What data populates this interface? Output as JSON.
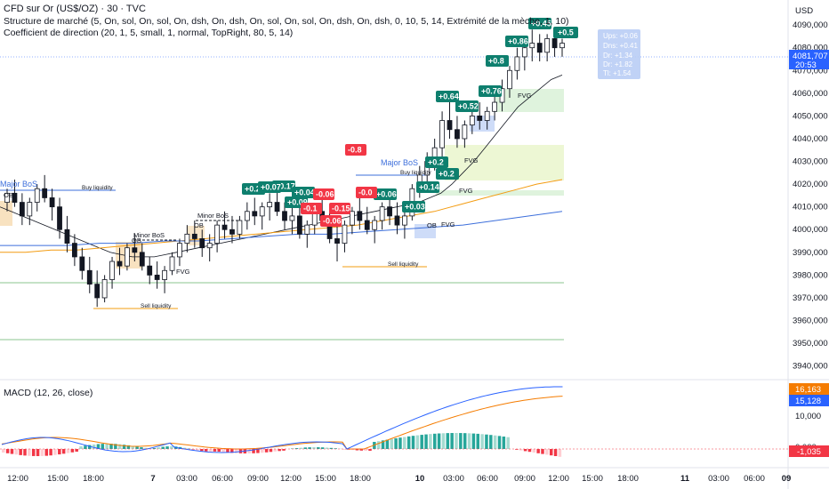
{
  "header": {
    "title": "CFD sur Or (US$/OZ) · 30 · TVC",
    "indicator1": "Structure de marché (5, On, sol, On, sol, On, dsh, On, dsh, On, sol, On, sol, On, dsh, On, dsh, 0, 10, 5, 14, Extrémité de la mèche, 1, 10)",
    "indicator2": "Coefficient de direction (20, 1, 5, small, 1, normal, TopRight, 80, 5, 14)",
    "currency": "USD"
  },
  "price_axis": {
    "ticks": [
      "4090,000",
      "4080,000",
      "4070,000",
      "4060,000",
      "4050,000",
      "4040,000",
      "4030,000",
      "4020,000",
      "4010,000",
      "4000,000",
      "3990,000",
      "3980,000",
      "3970,000",
      "3960,000",
      "3950,000",
      "3940,000"
    ],
    "current_price": "4081,707",
    "countdown": "20:53"
  },
  "macd": {
    "legend": "MACD (12, 26, close)",
    "ticks": [
      "10,000",
      "0,000"
    ],
    "badge_orange": "16,163",
    "badge_blue": "15,128",
    "badge_red": "-1,035"
  },
  "time_axis": {
    "labels": [
      "12:00",
      "15:00",
      "18:00",
      "7",
      "03:00",
      "06:00",
      "09:00",
      "12:00",
      "15:00",
      "18:00",
      "10",
      "03:00",
      "06:00",
      "09:00",
      "12:00",
      "15:00",
      "18:00",
      "11",
      "03:00",
      "06:00",
      "09"
    ]
  },
  "annotations": {
    "major_bos_left": "Major BoS",
    "major_bos_mid": "Major BoS",
    "minor_bos_1": "Minor BoS",
    "minor_bos_2": "Minor BoS",
    "ob": "OB",
    "fvg": "FVG",
    "buy_liquidity": "Buy liquidity",
    "sell_liquidity": "Sell liquidity"
  },
  "info_box": {
    "lines": [
      "Ups: +0.06",
      "Dns: +0.41",
      "Dr: +1.34",
      "Dr: +1.82",
      "Tl: +1.54"
    ]
  },
  "tags": {
    "green": [
      "+0.29",
      "+0.17",
      "+0.04",
      "+0.09",
      "+0.07",
      "+0.06",
      "+0.03",
      "+0.14",
      "+0.2",
      "+0.2",
      "+0.64",
      "+0.52",
      "+0.76",
      "+0.8",
      "+0.86",
      "+0.45",
      "+0.41",
      "+0.5"
    ],
    "red": [
      "-0.06",
      "-0.15",
      "-0.0",
      "-0.1",
      "-0.8",
      "-0.06"
    ]
  },
  "chart_data": {
    "type": "candlestick",
    "title": "CFD sur Or (US$/OZ) · 30 · TVC",
    "ylim": [
      3934,
      4101
    ],
    "candles": [
      [
        4012,
        4018,
        4008,
        4016
      ],
      [
        4016,
        4022,
        4010,
        4012
      ],
      [
        4012,
        4016,
        4002,
        4006
      ],
      [
        4006,
        4014,
        4002,
        4012
      ],
      [
        4012,
        4020,
        4008,
        4018
      ],
      [
        4018,
        4024,
        4012,
        4014
      ],
      [
        4014,
        4018,
        4004,
        4010
      ],
      [
        4010,
        4014,
        3996,
        4000
      ],
      [
        4000,
        4006,
        3990,
        3994
      ],
      [
        3994,
        3998,
        3984,
        3988
      ],
      [
        3988,
        3992,
        3978,
        3982
      ],
      [
        3982,
        3988,
        3972,
        3976
      ],
      [
        3976,
        3982,
        3966,
        3970
      ],
      [
        3970,
        3980,
        3968,
        3978
      ],
      [
        3978,
        3988,
        3974,
        3986
      ],
      [
        3986,
        3992,
        3980,
        3984
      ],
      [
        3984,
        3994,
        3982,
        3992
      ],
      [
        3992,
        3998,
        3986,
        3990
      ],
      [
        3990,
        3994,
        3982,
        3984
      ],
      [
        3984,
        3988,
        3976,
        3980
      ],
      [
        3980,
        3986,
        3974,
        3978
      ],
      [
        3978,
        3984,
        3972,
        3982
      ],
      [
        3982,
        3990,
        3980,
        3988
      ],
      [
        3988,
        3996,
        3984,
        3994
      ],
      [
        3994,
        4002,
        3990,
        3998
      ],
      [
        3998,
        4004,
        3992,
        3996
      ],
      [
        3996,
        4000,
        3988,
        3992
      ],
      [
        3992,
        3998,
        3986,
        3994
      ],
      [
        3994,
        4004,
        3990,
        4002
      ],
      [
        4002,
        4008,
        3996,
        4000
      ],
      [
        4000,
        4006,
        3994,
        3998
      ],
      [
        3998,
        4006,
        3996,
        4004
      ],
      [
        4004,
        4012,
        4000,
        4008
      ],
      [
        4008,
        4014,
        4002,
        4006
      ],
      [
        4006,
        4012,
        4000,
        4010
      ],
      [
        4010,
        4016,
        4004,
        4012
      ],
      [
        4012,
        4018,
        4006,
        4008
      ],
      [
        4008,
        4012,
        4000,
        4004
      ],
      [
        4004,
        4010,
        3998,
        4006
      ],
      [
        4006,
        4010,
        3996,
        3998
      ],
      [
        3998,
        4004,
        3992,
        4002
      ],
      [
        4002,
        4010,
        3998,
        4008
      ],
      [
        4008,
        4014,
        4002,
        4004
      ],
      [
        4004,
        4008,
        3994,
        3996
      ],
      [
        3996,
        4002,
        3986,
        3994
      ],
      [
        3994,
        4004,
        3990,
        4002
      ],
      [
        4002,
        4010,
        3998,
        4008
      ],
      [
        4008,
        4014,
        4000,
        4004
      ],
      [
        4004,
        4010,
        3998,
        4000
      ],
      [
        4000,
        4006,
        3994,
        4004
      ],
      [
        4004,
        4012,
        4000,
        4010
      ],
      [
        4010,
        4016,
        4002,
        4006
      ],
      [
        4006,
        4012,
        3998,
        4002
      ],
      [
        4002,
        4008,
        3996,
        4006
      ],
      [
        4006,
        4020,
        4004,
        4018
      ],
      [
        4018,
        4028,
        4014,
        4024
      ],
      [
        4024,
        4034,
        4020,
        4030
      ],
      [
        4030,
        4040,
        4026,
        4036
      ],
      [
        4036,
        4052,
        4032,
        4048
      ],
      [
        4048,
        4058,
        4040,
        4044
      ],
      [
        4044,
        4050,
        4036,
        4040
      ],
      [
        4040,
        4048,
        4036,
        4046
      ],
      [
        4046,
        4054,
        4042,
        4050
      ],
      [
        4050,
        4056,
        4044,
        4048
      ],
      [
        4048,
        4054,
        4044,
        4052
      ],
      [
        4052,
        4060,
        4048,
        4056
      ],
      [
        4056,
        4066,
        4052,
        4062
      ],
      [
        4062,
        4072,
        4058,
        4070
      ],
      [
        4070,
        4080,
        4066,
        4076
      ],
      [
        4076,
        4084,
        4070,
        4080
      ],
      [
        4080,
        4088,
        4074,
        4082
      ],
      [
        4082,
        4086,
        4074,
        4078
      ],
      [
        4078,
        4086,
        4074,
        4084
      ],
      [
        4084,
        4088,
        4076,
        4080
      ],
      [
        4080,
        4084,
        4076,
        4082
      ]
    ],
    "series": [
      {
        "name": "EMA court",
        "color": "#131722",
        "values": [
          4010,
          4008,
          4006,
          4004,
          4002,
          4000,
          3998,
          3996,
          3994,
          3992,
          3990,
          3989,
          3988,
          3988,
          3988,
          3989,
          3990,
          3991,
          3992,
          3993,
          3994,
          3995,
          3996,
          3997,
          3998,
          3999,
          4000,
          4001,
          4002,
          4003,
          4004,
          4005,
          4006,
          4007,
          4008,
          4009,
          4010,
          4011,
          4012,
          4014,
          4016,
          4020,
          4025,
          4030,
          4036,
          4042,
          4048,
          4054,
          4058,
          4062,
          4066,
          4068
        ]
      },
      {
        "name": "EMA moyen",
        "color": "#f39c12",
        "values": [
          3990,
          3990,
          3991,
          3991,
          3992,
          3993,
          3994,
          3995,
          3996,
          3997,
          3998,
          3999,
          4000,
          4001,
          4002,
          4004,
          4006,
          4008,
          4011,
          4014,
          4017,
          4020,
          4022
        ]
      },
      {
        "name": "EMA long",
        "color": "#3d6fdb",
        "values": [
          3993,
          3993,
          3993,
          3994,
          3994,
          3995,
          3995,
          3996,
          3997,
          3998,
          3998,
          3999,
          4000,
          4001,
          4002,
          4004,
          4006,
          4008
        ]
      }
    ]
  }
}
